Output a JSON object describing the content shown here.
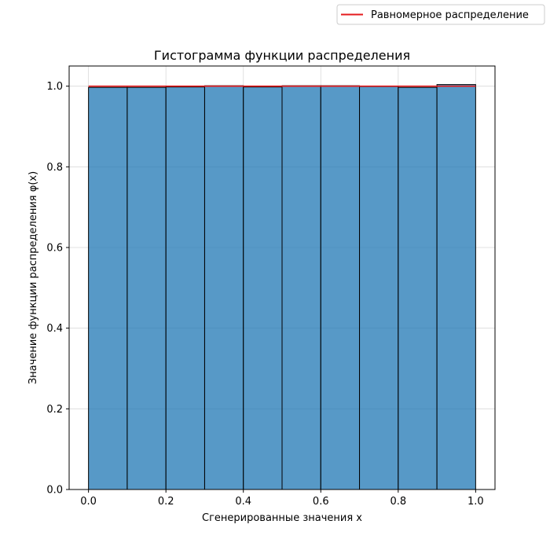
{
  "chart_data": {
    "type": "bar",
    "subtype": "histogram",
    "title": "Гистограмма функции распределения",
    "xlabel": "Сгенерированные значения x",
    "ylabel": "Значение функции распределения φ(x)",
    "xlim": [
      -0.05,
      1.05
    ],
    "ylim": [
      0.0,
      1.05
    ],
    "xticks": [
      0.0,
      0.2,
      0.4,
      0.6,
      0.8,
      1.0
    ],
    "xtick_labels": [
      "0.0",
      "0.2",
      "0.4",
      "0.6",
      "0.8",
      "1.0"
    ],
    "yticks": [
      0.0,
      0.2,
      0.4,
      0.6,
      0.8,
      1.0
    ],
    "ytick_labels": [
      "0.0",
      "0.2",
      "0.4",
      "0.6",
      "0.8",
      "1.0"
    ],
    "grid": true,
    "legend_position": "top-right, outside plot area",
    "bins": {
      "edges": [
        0.0,
        0.1,
        0.2,
        0.3,
        0.4,
        0.5,
        0.6,
        0.7,
        0.8,
        0.9,
        1.0
      ],
      "values": [
        0.997,
        0.997,
        0.998,
        1.001,
        0.998,
        1.001,
        1.001,
        0.999,
        0.997,
        1.004
      ]
    },
    "series": [
      {
        "name": "Равномерное распределение",
        "type": "line",
        "x": [
          0.0,
          1.0
        ],
        "y": [
          1.0,
          1.0
        ]
      }
    ],
    "colors": {
      "bar_fill": "#1f77b4",
      "bar_opacity": 0.75,
      "bar_edge": "#000000",
      "line": "#e41a1c",
      "grid": "#d9d9d9"
    }
  }
}
